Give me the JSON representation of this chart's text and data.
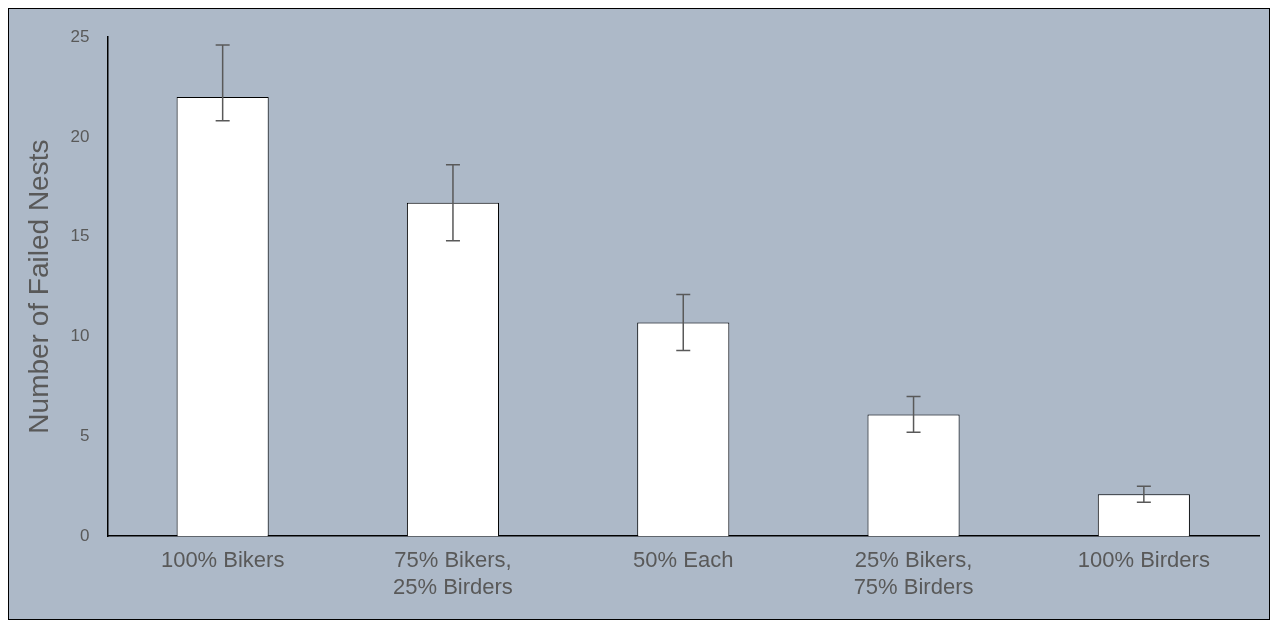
{
  "chart_data": {
    "type": "bar",
    "ylabel": "Number of Failed Nests",
    "categories": [
      "100% Bikers",
      "75% Bikers, 25% Birders",
      "50% Each",
      "25% Bikers, 75% Birders",
      "100% Birders"
    ],
    "values": [
      22.0,
      16.7,
      10.7,
      6.1,
      2.1
    ],
    "errors": [
      [
        20.8,
        24.6
      ],
      [
        14.8,
        18.6
      ],
      [
        9.3,
        12.1
      ],
      [
        5.2,
        7.0
      ],
      [
        1.7,
        2.5
      ]
    ],
    "color": "#ffffff",
    "ylim": [
      0,
      25
    ],
    "yticks": [
      0,
      5,
      10,
      15,
      20,
      25
    ],
    "grid": false,
    "legend": false
  }
}
